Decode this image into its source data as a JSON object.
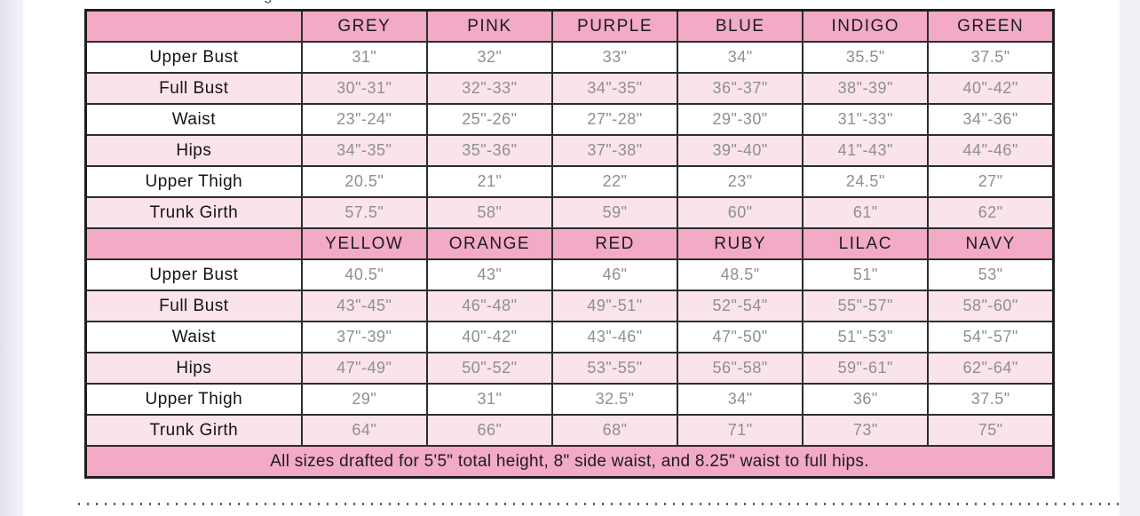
{
  "page": {
    "cropped_top_glyph": "g",
    "footer_note": "All sizes drafted for 5'5\" total height, 8\" side waist, and 8.25\" waist to full hips."
  },
  "theme": {
    "header_pink": "#f2aac6",
    "row_pink": "#fae3e9",
    "row_white": "#ffffff",
    "border_color": "#2d2d2d",
    "label_text_color": "#141414",
    "value_text_color": "#8f8f8f"
  },
  "table": {
    "sections": [
      {
        "colors": [
          "GREY",
          "PINK",
          "PURPLE",
          "BLUE",
          "INDIGO",
          "GREEN"
        ],
        "rows": [
          {
            "label": "Upper Bust",
            "values": [
              "31\"",
              "32\"",
              "33\"",
              "34\"",
              "35.5\"",
              "37.5\""
            ]
          },
          {
            "label": "Full Bust",
            "values": [
              "30\"-31\"",
              "32\"-33\"",
              "34\"-35\"",
              "36\"-37\"",
              "38\"-39\"",
              "40\"-42\""
            ]
          },
          {
            "label": "Waist",
            "values": [
              "23\"-24\"",
              "25\"-26\"",
              "27\"-28\"",
              "29\"-30\"",
              "31\"-33\"",
              "34\"-36\""
            ]
          },
          {
            "label": "Hips",
            "values": [
              "34\"-35\"",
              "35\"-36\"",
              "37\"-38\"",
              "39\"-40\"",
              "41\"-43\"",
              "44\"-46\""
            ]
          },
          {
            "label": "Upper Thigh",
            "values": [
              "20.5\"",
              "21\"",
              "22\"",
              "23\"",
              "24.5\"",
              "27\""
            ]
          },
          {
            "label": "Trunk Girth",
            "values": [
              "57.5\"",
              "58\"",
              "59\"",
              "60\"",
              "61\"",
              "62\""
            ]
          }
        ]
      },
      {
        "colors": [
          "YELLOW",
          "ORANGE",
          "RED",
          "RUBY",
          "LILAC",
          "NAVY"
        ],
        "rows": [
          {
            "label": "Upper Bust",
            "values": [
              "40.5\"",
              "43\"",
              "46\"",
              "48.5\"",
              "51\"",
              "53\""
            ]
          },
          {
            "label": "Full Bust",
            "values": [
              "43\"-45\"",
              "46\"-48\"",
              "49\"-51\"",
              "52\"-54\"",
              "55\"-57\"",
              "58\"-60\""
            ]
          },
          {
            "label": "Waist",
            "values": [
              "37\"-39\"",
              "40\"-42\"",
              "43\"-46\"",
              "47\"-50\"",
              "51\"-53\"",
              "54\"-57\""
            ]
          },
          {
            "label": "Hips",
            "values": [
              "47\"-49\"",
              "50\"-52\"",
              "53\"-55\"",
              "56\"-58\"",
              "59\"-61\"",
              "62\"-64\""
            ]
          },
          {
            "label": "Upper Thigh",
            "values": [
              "29\"",
              "31\"",
              "32.5\"",
              "34\"",
              "36\"",
              "37.5\""
            ]
          },
          {
            "label": "Trunk Girth",
            "values": [
              "64\"",
              "66\"",
              "68\"",
              "71\"",
              "73\"",
              "75\""
            ]
          }
        ]
      }
    ]
  }
}
